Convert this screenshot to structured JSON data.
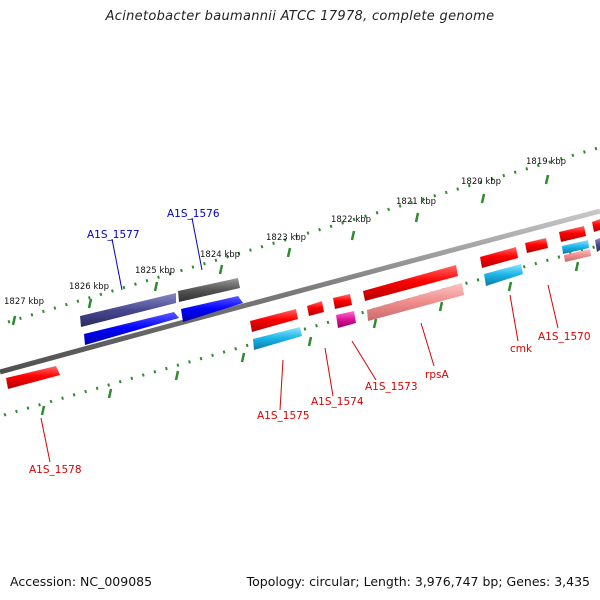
{
  "title": "Acinetobacter baumannii ATCC 17978, complete genome",
  "footer": {
    "accession": "Accession: NC_009085",
    "topology": "Topology: circular; Length: 3,976,747 bp; Genes: 3,435"
  },
  "scale_labels": [
    "1827 kbp",
    "1826 kbp",
    "1825 kbp",
    "1824 kbp",
    "1823 kbp",
    "1822 kbp",
    "1821 kbp",
    "1820 kbp",
    "1819 kbp"
  ],
  "gene_labels": {
    "A1S_1577": "A1S_1577",
    "A1S_1576": "A1S_1576",
    "A1S_1578": "A1S_1578",
    "A1S_1575": "A1S_1575",
    "A1S_1574": "A1S_1574",
    "A1S_1573": "A1S_1573",
    "rpsA": "rpsA",
    "cmk": "cmk",
    "A1S_1570": "A1S_1570"
  },
  "colors": {
    "backbone": "#808080",
    "ticks": "#2e8b2e",
    "gene_red": "#ff0000",
    "gene_salmon": "#f08c8c",
    "gene_cyan": "#1ab4e6",
    "gene_blue": "#0000ff",
    "gene_slate": "#484890",
    "gene_gray": "#555555",
    "gene_magenta": "#e0109a",
    "label_blue": "#0000cc",
    "label_red": "#dd0000"
  }
}
